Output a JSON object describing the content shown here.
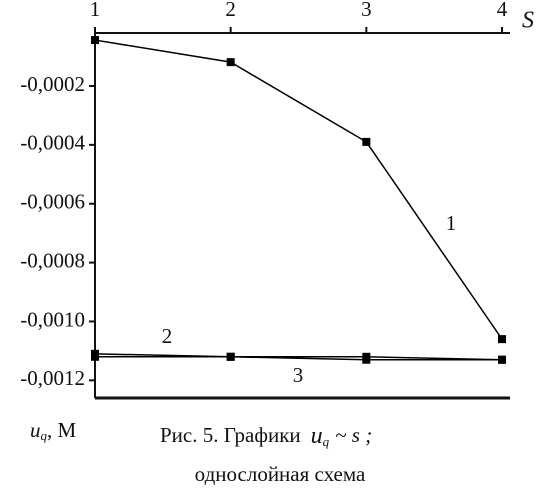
{
  "chart_data": {
    "type": "line",
    "x_label": "S",
    "y_label": {
      "symbol": "u",
      "sub": "q",
      "unit": ", М"
    },
    "caption": {
      "prefix": "Рис. 5. Графики",
      "symbol": "u",
      "sub": "q",
      "suffix": "~ s ;",
      "line2": "однослойная схема"
    },
    "x": [
      1,
      2,
      3,
      4
    ],
    "xlim": [
      1,
      4
    ],
    "xticks": [
      1,
      2,
      3,
      4
    ],
    "ylim": [
      -0.00126,
      -2e-05
    ],
    "yticks": [
      {
        "value": -0.0002,
        "label": "-0,0002"
      },
      {
        "value": -0.0004,
        "label": "-0,0004"
      },
      {
        "value": -0.0006,
        "label": "-0,0006"
      },
      {
        "value": -0.0008,
        "label": "-0,0008"
      },
      {
        "value": -0.001,
        "label": "-0,0010"
      },
      {
        "value": -0.0012,
        "label": "-0,0012"
      }
    ],
    "series": [
      {
        "name": "1",
        "color": "#000000",
        "values": [
          -4.4e-05,
          -0.000119,
          -0.00039,
          -0.00106
        ]
      },
      {
        "name": "2",
        "color": "#000000",
        "values": [
          -0.00111,
          -0.00112,
          -0.00112,
          -0.00113
        ]
      },
      {
        "name": "3",
        "color": "#000000",
        "values": [
          -0.00112,
          -0.00112,
          -0.00113,
          -0.00113
        ]
      }
    ]
  }
}
